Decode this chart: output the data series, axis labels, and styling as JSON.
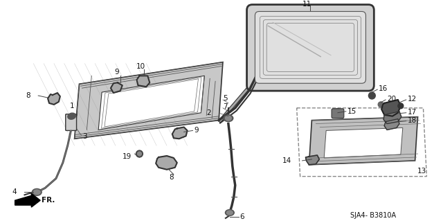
{
  "bg_color": "#ffffff",
  "diagram_code": "SJA4- B3810A",
  "fig_width": 6.4,
  "fig_height": 3.19,
  "dpi": 100,
  "label_color": "#111111",
  "line_color": "#444444",
  "gray_fill": "#b0b0b0",
  "dark_fill": "#555555",
  "light_fill": "#d8d8d8",
  "white_fill": "#ffffff",
  "hatch_color": "#888888"
}
